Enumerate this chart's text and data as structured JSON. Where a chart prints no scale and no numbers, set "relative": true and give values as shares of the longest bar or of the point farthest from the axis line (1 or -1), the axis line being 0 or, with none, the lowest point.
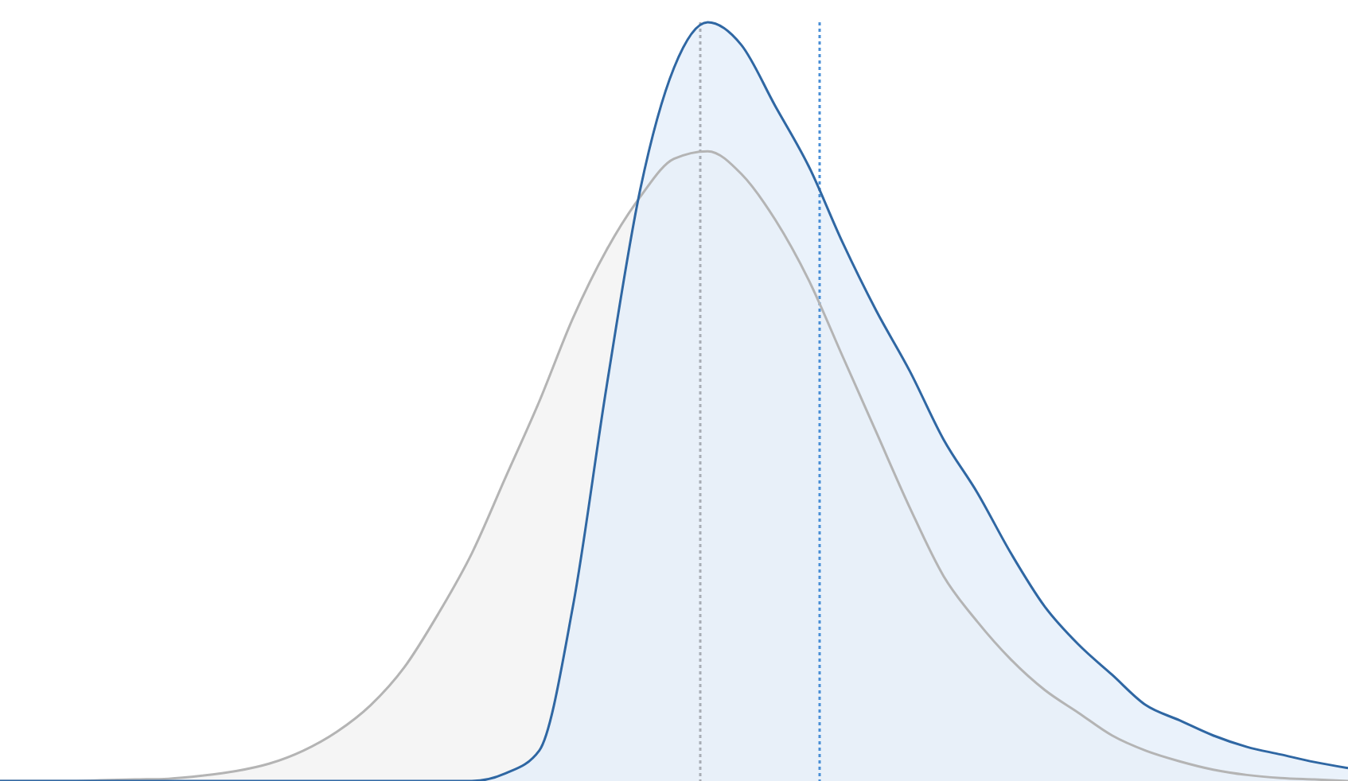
{
  "chart_data": {
    "type": "area",
    "relative": true,
    "categories": [
      null,
      null,
      null,
      null,
      null,
      null,
      null,
      null,
      null,
      null,
      null,
      null,
      null,
      null,
      null,
      null,
      null,
      null,
      null,
      null,
      null,
      null,
      null,
      null,
      null,
      null,
      null,
      null,
      null,
      null,
      null,
      null,
      null,
      null,
      null,
      null,
      null,
      null,
      null,
      null,
      null
    ],
    "series": [
      {
        "color": "#b4b4b4",
        "values": [
          0,
          0,
          0,
          0.001,
          0.002,
          0.003,
          0.007,
          0.013,
          0.023,
          0.04,
          0.065,
          0.1,
          0.15,
          0.22,
          0.3,
          0.4,
          0.5,
          0.61,
          0.7,
          0.77,
          0.82,
          0.83,
          0.8,
          0.74,
          0.66,
          0.56,
          0.46,
          0.36,
          0.27,
          0.21,
          0.16,
          0.12,
          0.09,
          0.06,
          0.04,
          0.026,
          0.015,
          0.008,
          0.004,
          0.002,
          0
        ]
      },
      {
        "color": "#2f67a3",
        "values": [
          0,
          0,
          0,
          0,
          0,
          0,
          0,
          0,
          0,
          0,
          0,
          0,
          0,
          0,
          0,
          0.01,
          0.04,
          0.23,
          0.52,
          0.78,
          0.94,
          1.0,
          0.97,
          0.89,
          0.81,
          0.71,
          0.62,
          0.54,
          0.45,
          0.38,
          0.3,
          0.23,
          0.18,
          0.14,
          0.1,
          0.08,
          0.06,
          0.045,
          0.035,
          0.025,
          0.017
        ]
      }
    ]
  }
}
